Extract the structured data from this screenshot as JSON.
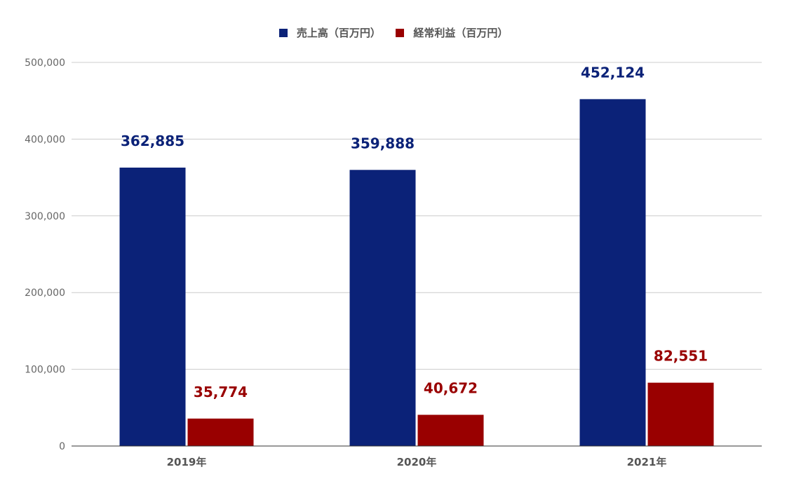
{
  "chart_data": {
    "type": "bar",
    "title": "",
    "xlabel": "",
    "ylabel": "",
    "categories": [
      "2019年",
      "2020年",
      "2021年"
    ],
    "series": [
      {
        "name": "売上高（百万円）",
        "color": "#0b2278",
        "values": [
          362885,
          359888,
          452124
        ],
        "labels": [
          "362,885",
          "359,888",
          "452,124"
        ]
      },
      {
        "name": "経常利益（百万円）",
        "color": "#990000",
        "values": [
          35774,
          40672,
          82551
        ],
        "labels": [
          "35,774",
          "40,672",
          "82,551"
        ]
      }
    ],
    "ylim": [
      0,
      500000
    ],
    "y_ticks": [
      0,
      100000,
      200000,
      300000,
      400000,
      500000
    ],
    "y_tick_labels": [
      "0",
      "100,000",
      "200,000",
      "300,000",
      "400,000",
      "500,000"
    ],
    "grid": true,
    "legend_position": "top-center"
  }
}
